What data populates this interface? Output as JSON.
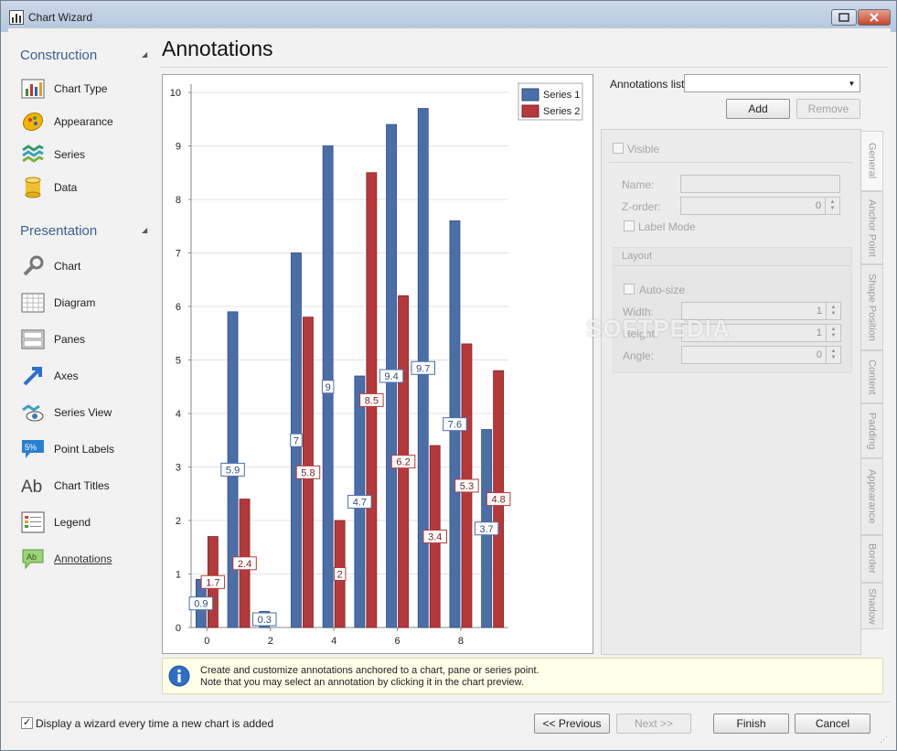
{
  "window": {
    "title": "Chart Wizard"
  },
  "nav": {
    "construction": {
      "heading": "Construction",
      "items": [
        {
          "label": "Chart Type",
          "icon": "chart-type-icon"
        },
        {
          "label": "Appearance",
          "icon": "appearance-icon"
        },
        {
          "label": "Series",
          "icon": "series-icon"
        },
        {
          "label": "Data",
          "icon": "data-icon"
        }
      ]
    },
    "presentation": {
      "heading": "Presentation",
      "items": [
        {
          "label": "Chart",
          "icon": "wrench-icon"
        },
        {
          "label": "Diagram",
          "icon": "diagram-icon"
        },
        {
          "label": "Panes",
          "icon": "panes-icon"
        },
        {
          "label": "Axes",
          "icon": "axes-icon"
        },
        {
          "label": "Series View",
          "icon": "series-view-icon"
        },
        {
          "label": "Point Labels",
          "icon": "point-labels-icon"
        },
        {
          "label": "Chart Titles",
          "icon": "chart-titles-icon"
        },
        {
          "label": "Legend",
          "icon": "legend-icon"
        },
        {
          "label": "Annotations",
          "icon": "annotations-icon"
        }
      ]
    }
  },
  "page": {
    "title": "Annotations"
  },
  "annotations_panel": {
    "list_label": "Annotations list:",
    "list_value": "",
    "add_label": "Add",
    "remove_label": "Remove",
    "visible_label": "Visible",
    "name_label": "Name:",
    "name_value": "",
    "zorder_label": "Z-order:",
    "zorder_value": "0",
    "label_mode_label": "Label Mode",
    "layout_heading": "Layout",
    "autosize_label": "Auto-size",
    "width_label": "Width:",
    "width_value": "1",
    "height_label": "Height:",
    "height_value": "1",
    "angle_label": "Angle:",
    "angle_value": "0",
    "tabs": [
      "General",
      "Anchor Point",
      "Shape Position",
      "Content",
      "Padding",
      "Appearance",
      "Border",
      "Shadow"
    ]
  },
  "watermark": "SOFTPEDIA",
  "info": {
    "line1": "Create and customize annotations anchored to a chart, pane or series point.",
    "line2": "Note that you may select an annotation by clicking it in the chart preview."
  },
  "footer": {
    "show_wizard_label": "Display a wizard every time a new chart is added",
    "show_wizard_checked": true,
    "previous_label": "<< Previous",
    "next_label": "Next >>",
    "finish_label": "Finish",
    "cancel_label": "Cancel"
  },
  "colors": {
    "series1": "#4a6fa8",
    "series2": "#b5393b",
    "accent": "#3c5f8f"
  },
  "chart_data": {
    "type": "bar",
    "x": [
      0,
      1,
      2,
      3,
      4,
      5,
      6,
      7,
      8,
      9
    ],
    "xticks": [
      "0",
      "2",
      "4",
      "6",
      "8"
    ],
    "yticks": [
      "0",
      "1",
      "2",
      "3",
      "4",
      "5",
      "6",
      "7",
      "8",
      "9",
      "10"
    ],
    "ylim": [
      0,
      10
    ],
    "series": [
      {
        "name": "Series 1",
        "values": [
          0.9,
          5.9,
          0.3,
          7,
          9,
          4.7,
          9.4,
          9.7,
          7.6,
          3.7
        ]
      },
      {
        "name": "Series 2",
        "values": [
          1.7,
          2.4,
          0,
          5.8,
          2,
          8.5,
          6.2,
          3.4,
          5.3,
          4.8
        ]
      }
    ],
    "labels": [
      [
        "0.9",
        "5.9",
        "0.3",
        "7",
        "9",
        "4.7",
        "9.4",
        "9.7",
        "7.6",
        "3.7"
      ],
      [
        "1.7",
        "2.4",
        "",
        "5.8",
        "2",
        "8.5",
        "6.2",
        "3.4",
        "5.3",
        "4.8"
      ]
    ],
    "legend": "top-right",
    "grid": true
  }
}
